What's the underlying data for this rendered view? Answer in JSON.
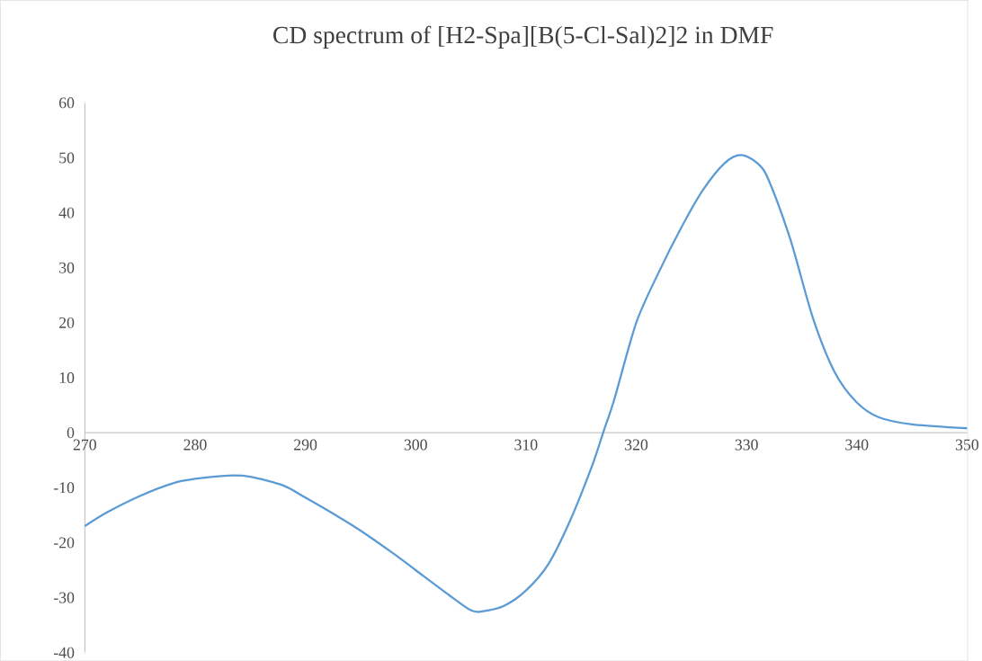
{
  "chart_data": {
    "type": "line",
    "title": "CD spectrum of [H2-Spa][B(5-Cl-Sal)2]2 in DMF",
    "x": [
      270,
      272,
      275,
      278,
      280,
      283,
      285,
      288,
      290,
      293,
      295,
      298,
      300,
      303,
      305,
      306,
      308,
      310,
      312,
      314,
      316,
      317,
      318,
      320,
      322,
      324,
      326,
      328,
      329.5,
      331,
      332,
      334,
      336,
      338,
      340,
      342,
      345,
      350
    ],
    "series": [
      {
        "color": "#5b9bd5",
        "values": [
          -17,
          -14.5,
          -11.5,
          -9.2,
          -8.4,
          -7.8,
          -8,
          -9.6,
          -11.8,
          -15.3,
          -17.8,
          -22,
          -25,
          -29.5,
          -32.3,
          -32.5,
          -31.5,
          -28.7,
          -24,
          -16,
          -6,
          0,
          6,
          20,
          29,
          37,
          44,
          49,
          50.5,
          49,
          46,
          35,
          21,
          11,
          5.5,
          2.8,
          1.5,
          0.8
        ]
      }
    ],
    "xlim": [
      270,
      350
    ],
    "xticks": [
      270,
      280,
      290,
      300,
      310,
      320,
      330,
      340,
      350
    ],
    "ylim": [
      -40,
      60
    ],
    "yticks": [
      -40,
      -30,
      -20,
      -10,
      0,
      10,
      20,
      30,
      40,
      50,
      60
    ]
  }
}
